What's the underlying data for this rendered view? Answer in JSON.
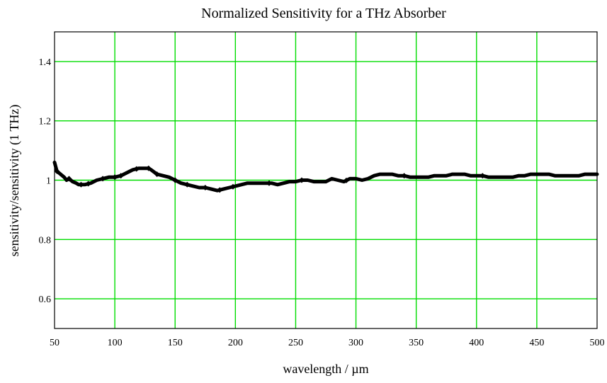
{
  "chart_data": {
    "type": "line",
    "title": "Normalized Sensitivity for a THz Absorber",
    "xlabel": "wavelength / µm",
    "ylabel": "sensitivity/sensitivity (1 THz)",
    "xlim": [
      50,
      500
    ],
    "ylim": [
      0.5,
      1.5
    ],
    "x_ticks": [
      50,
      100,
      150,
      200,
      250,
      300,
      350,
      400,
      450,
      500
    ],
    "x_tick_labels": [
      "50",
      "100",
      "150",
      "200",
      "250",
      "300",
      "350",
      "400",
      "450",
      "500"
    ],
    "y_ticks": [
      0.6,
      0.8,
      1.0,
      1.2,
      1.4
    ],
    "y_tick_labels": [
      "0.6",
      "0.8",
      "1",
      "1.2",
      "1.4"
    ],
    "grid": true,
    "grid_color": "#00dd00",
    "line_color": "#000000",
    "series": [
      {
        "x": [
          50,
          52,
          55,
          58,
          60,
          62,
          65,
          68,
          70,
          72,
          75,
          80,
          85,
          90,
          95,
          100,
          105,
          110,
          115,
          120,
          125,
          128,
          130,
          135,
          140,
          145,
          150,
          155,
          160,
          165,
          170,
          175,
          180,
          185,
          190,
          195,
          200,
          205,
          210,
          215,
          220,
          225,
          230,
          235,
          240,
          245,
          250,
          255,
          260,
          265,
          270,
          275,
          280,
          285,
          290,
          295,
          300,
          305,
          310,
          315,
          320,
          325,
          330,
          335,
          340,
          345,
          350,
          355,
          360,
          365,
          370,
          375,
          380,
          385,
          390,
          395,
          400,
          405,
          410,
          415,
          420,
          425,
          430,
          435,
          440,
          445,
          450,
          455,
          460,
          465,
          470,
          475,
          480,
          485,
          490,
          495,
          500
        ],
        "y": [
          1.06,
          1.03,
          1.02,
          1.01,
          1.0,
          1.005,
          0.995,
          0.99,
          0.985,
          0.985,
          0.985,
          0.99,
          1.0,
          1.005,
          1.01,
          1.01,
          1.015,
          1.025,
          1.035,
          1.04,
          1.04,
          1.04,
          1.035,
          1.02,
          1.015,
          1.01,
          1.0,
          0.99,
          0.985,
          0.98,
          0.975,
          0.975,
          0.97,
          0.965,
          0.97,
          0.975,
          0.98,
          0.985,
          0.99,
          0.99,
          0.99,
          0.99,
          0.99,
          0.985,
          0.99,
          0.995,
          0.995,
          1.0,
          1.0,
          0.995,
          0.995,
          0.995,
          1.005,
          1.0,
          0.995,
          1.005,
          1.005,
          1.0,
          1.005,
          1.015,
          1.02,
          1.02,
          1.02,
          1.015,
          1.015,
          1.01,
          1.01,
          1.01,
          1.01,
          1.015,
          1.015,
          1.015,
          1.02,
          1.02,
          1.02,
          1.015,
          1.015,
          1.015,
          1.01,
          1.01,
          1.01,
          1.01,
          1.01,
          1.015,
          1.015,
          1.02,
          1.02,
          1.02,
          1.02,
          1.015,
          1.015,
          1.015,
          1.015,
          1.015,
          1.02,
          1.02,
          1.02
        ]
      }
    ],
    "markers_x": [
      52,
      62,
      72,
      78,
      90,
      100,
      105,
      118,
      128,
      135,
      150,
      160,
      175,
      187,
      198,
      228,
      255,
      292,
      340,
      405
    ]
  }
}
